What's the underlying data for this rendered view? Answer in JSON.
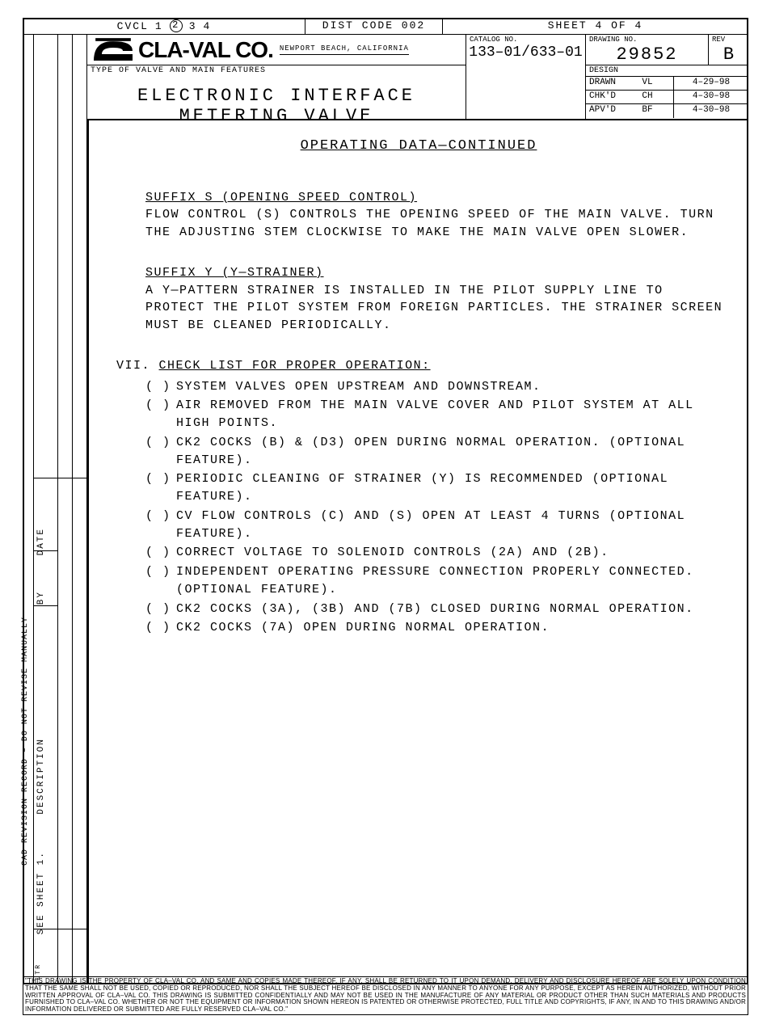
{
  "header": {
    "cvcl_label": "CVCL",
    "cvcl_nums": [
      "1",
      "2",
      "3",
      "4"
    ],
    "cvcl_circled_index": 1,
    "dist_code": "DIST CODE 002",
    "sheet": "SHEET  4  OF  4",
    "company": "CLA-VAL CO.",
    "location": "NEWPORT BEACH, CALIFORNIA",
    "type_label": "TYPE OF VALVE AND MAIN FEATURES",
    "valve_title": "ELECTRONIC  INTERFACE  METERING  VALVE",
    "catalog_label": "CATALOG NO.",
    "catalog_no": "133–01/633–01",
    "drawing_label": "DRAWING NO.",
    "drawing_no": "29852",
    "rev_label": "REV",
    "rev": "B",
    "design_label": "DESIGN",
    "sig_rows": [
      {
        "lbl": "DRAWN",
        "init": "VL",
        "date": "4–29–98"
      },
      {
        "lbl": "CHK'D",
        "init": "CH",
        "date": "4–30–98"
      },
      {
        "lbl": "APV'D",
        "init": "BF",
        "date": "4–30–98"
      }
    ]
  },
  "left": {
    "cad": "CAD REVISION RECORD – DO NOT REVISE MANUALLY",
    "date": "DATE",
    "by": "BY",
    "description": "DESCRIPTION",
    "see_sheet": "SEE SHEET 1.",
    "ltr": "LTR"
  },
  "body": {
    "title": "OPERATING DATA—CONTINUED",
    "suffix_s_title": "SUFFIX S (OPENING SPEED CONTROL)",
    "suffix_s_text": "FLOW CONTROL (S) CONTROLS THE OPENING SPEED OF THE MAIN VALVE. TURN THE ADJUSTING STEM CLOCKWISE TO MAKE THE MAIN VALVE OPEN SLOWER.",
    "suffix_y_title": "SUFFIX Y (Y—STRAINER)",
    "suffix_y_text": "A Y—PATTERN STRAINER IS INSTALLED IN THE PILOT SUPPLY LINE TO PROTECT THE PILOT SYSTEM FROM FOREIGN PARTICLES.  THE STRAINER SCREEN MUST BE CLEANED PERIODICALLY.",
    "vii_label": "VII.",
    "vii_title": "CHECK LIST FOR PROPER OPERATION:",
    "checks": [
      "SYSTEM VALVES OPEN UPSTREAM AND DOWNSTREAM.",
      "AIR REMOVED FROM THE MAIN VALVE COVER AND PILOT SYSTEM AT ALL HIGH POINTS.",
      "CK2 COCKS (B) & (D3) OPEN DURING NORMAL OPERATION. (OPTIONAL FEATURE).",
      "PERIODIC CLEANING OF STRAINER (Y) IS RECOMMENDED (OPTIONAL FEATURE).",
      "CV FLOW CONTROLS (C) AND (S) OPEN AT LEAST 4 TURNS (OPTIONAL FEATURE).",
      "CORRECT VOLTAGE TO SOLENOID CONTROLS (2A) AND (2B).",
      "INDEPENDENT OPERATING PRESSURE CONNECTION PROPERLY CONNECTED. (OPTIONAL FEATURE).",
      "CK2 COCKS (3A), (3B) AND (7B) CLOSED DURING NORMAL OPERATION.",
      "CK2 COCKS (7A) OPEN DURING NORMAL OPERATION."
    ]
  },
  "legal": "\"THIS DRAWING IS THE PROPERTY OF CLA–VAL CO. AND SAME AND COPIES MADE THEREOF, IF ANY, SHALL BE RETURNED TO IT UPON DEMAND. DELIVERY AND DISCLOSURE HEREOF ARE SOLELY UPON CONDITION THAT THE SAME SHALL NOT BE USED, COPIED OR REPRODUCED, NOR SHALL THE SUBJECT HEREOF BE DISCLOSED IN ANY MANNER TO ANYONE FOR ANY PURPOSE, EXCEPT AS HEREIN AUTHORIZED, WITHOUT PRIOR WRITTEN APPROVAL OF CLA–VAL CO. THIS DRAWING IS SUBMITTED CONFIDENTIALLY AND MAY NOT BE USED IN THE MANUFACTURE OF ANY MATERIAL OR PRODUCT OTHER THAN SUCH MATERIALS AND PRODUCTS FURNISHED TO CLA–VAL CO. WHETHER OR NOT THE EQUIPMENT OR INFORMATION SHOWN HEREON IS PATENTED OR OTHERWISE PROTECTED, FULL TITLE AND COPYRIGHTS, IF ANY, IN AND TO THIS DRAWING AND/OR INFORMATION DELIVERED OR SUBMITTED ARE FULLY RESERVED CLA–VAL CO.\""
}
